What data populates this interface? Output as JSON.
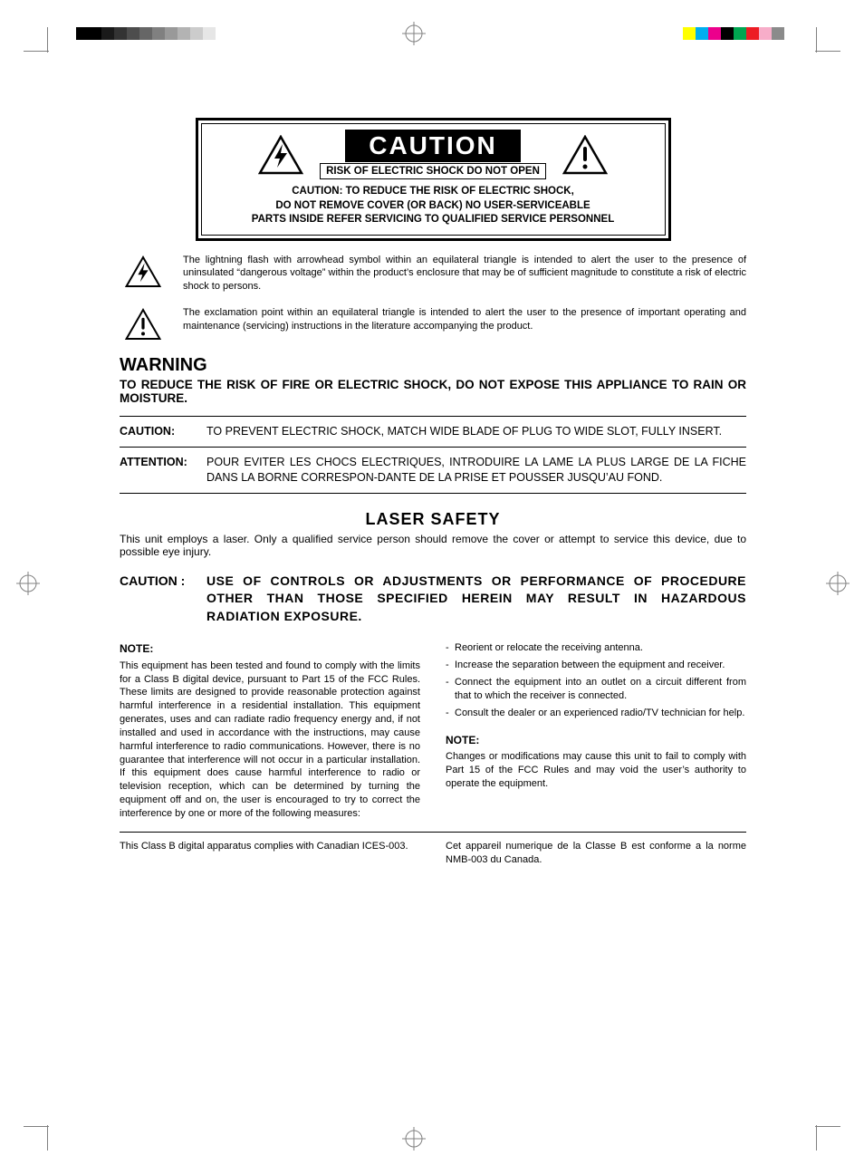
{
  "printer_marks": {
    "gray_swatches": [
      "#000000",
      "#000000",
      "#1a1a1a",
      "#333333",
      "#4d4d4d",
      "#666666",
      "#808080",
      "#999999",
      "#b3b3b3",
      "#cccccc",
      "#e6e6e6",
      "#ffffff"
    ],
    "color_swatches": [
      "#ffff00",
      "#00aeef",
      "#ec008c",
      "#000000",
      "#00a651",
      "#ed1c24",
      "#f7adc9",
      "#8b8b8b"
    ]
  },
  "caution_box": {
    "title": "CAUTION",
    "subtitle": "RISK OF ELECTRIC SHOCK DO NOT OPEN",
    "body_lines": [
      "CAUTION: TO REDUCE THE RISK OF ELECTRIC SHOCK,",
      "DO NOT REMOVE COVER (OR BACK) NO USER-SERVICEABLE",
      "PARTS INSIDE REFER SERVICING TO QUALIFIED SERVICE PERSONNEL"
    ]
  },
  "symbols": {
    "bolt": "The lightning flash with arrowhead symbol within an equilateral triangle is intended to alert the user to the presence of uninsulated “dangerous voltage” within the product’s enclosure that may be of sufficient magnitude to constitute a risk of electric shock to persons.",
    "exclaim": "The exclamation point within an equilateral triangle is intended to alert the user to the presence of important operating and maintenance (servicing) instructions in the literature accompanying the product."
  },
  "warning": {
    "heading": "WARNING",
    "body": "TO REDUCE THE RISK OF FIRE OR ELECTRIC SHOCK, DO NOT EXPOSE THIS APPLIANCE TO RAIN OR MOISTURE."
  },
  "caution_row": {
    "label": "CAUTION:",
    "text": "TO PREVENT ELECTRIC SHOCK, MATCH WIDE BLADE OF PLUG TO WIDE SLOT, FULLY INSERT."
  },
  "attention_row": {
    "label": "ATTENTION:",
    "text": "POUR EVITER LES CHOCS ELECTRIQUES, INTRODUIRE LA LAME LA PLUS LARGE DE LA FICHE DANS LA BORNE CORRESPON-DANTE DE LA PRISE ET POUSSER JUSQU’AU FOND."
  },
  "laser": {
    "heading": "LASER SAFETY",
    "body": "This unit employs a laser. Only a qualified service person should remove the cover or attempt to service this device, due to possible eye injury.",
    "caution_label": "CAUTION :",
    "caution_text": "USE OF CONTROLS OR ADJUSTMENTS OR PERFORMANCE OF PROCEDURE OTHER THAN THOSE SPECIFIED HEREIN MAY RESULT IN HAZARDOUS RADIATION EXPOSURE."
  },
  "fcc": {
    "note_label": "NOTE:",
    "body": "This equipment has been tested and found to comply with the limits for a Class B digital device, pursuant to Part 15 of the FCC Rules. These limits are designed to provide reasonable protection against harmful interference in a residential installation. This equipment generates, uses and can radiate radio frequency energy and, if not installed and used in accordance with the instructions, may cause harmful interference to radio communications. However, there is no guarantee that interference will not occur in a particular installation. If this equipment does cause harmful interference to radio or television reception, which can be determined by turning the equipment off and on, the user is encouraged to try to correct the interference by one or more of the following measures:",
    "bullets": [
      "Reorient or relocate the receiving antenna.",
      "Increase the separation between the equipment and receiver.",
      "Connect the equipment into an outlet on a circuit different from that to which the receiver is connected.",
      "Consult the dealer or an experienced radio/TV technician for help."
    ],
    "note2_label": "NOTE:",
    "note2_body": "Changes or modifications may cause this unit to fail to comply with Part 15 of the FCC Rules and may void the user’s authority to operate the equipment."
  },
  "footer": {
    "left": "This Class B digital apparatus complies with Canadian ICES-003.",
    "right": "Cet appareil numerique de la Classe B est conforme a la norme NMB-003 du Canada."
  }
}
